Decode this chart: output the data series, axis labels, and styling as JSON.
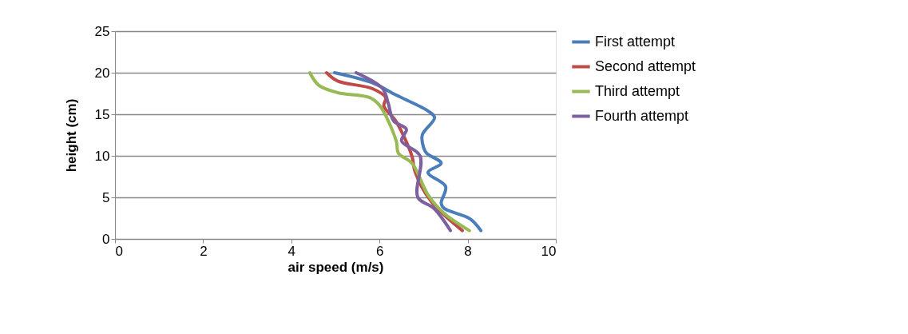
{
  "chart_data": {
    "type": "line",
    "xlabel": "air speed (m/s)",
    "ylabel": "height (cm)",
    "xlim": [
      0,
      10
    ],
    "xticks": [
      0,
      2,
      4,
      6,
      8,
      10
    ],
    "ylim": [
      0,
      25
    ],
    "yticks": [
      0,
      5,
      10,
      15,
      20,
      25
    ],
    "grid": "y",
    "legend": "right",
    "marker": "none",
    "line_style": "solid",
    "series": [
      {
        "name": "First attempt",
        "color": "#4a7ebb",
        "x": [
          8.3,
          8.06,
          7.46,
          7.4,
          7.5,
          7.1,
          7.4,
          7.07,
          7.0,
          6.97,
          7.25,
          7.1,
          6.38,
          5.83,
          4.98
        ],
        "values": [
          1,
          2.4,
          3.7,
          4.3,
          6.3,
          8,
          9.1,
          10.3,
          11,
          12.5,
          14.6,
          15.4,
          17.3,
          18.8,
          20
        ]
      },
      {
        "name": "Second attempt",
        "color": "#be4b48",
        "x": [
          7.88,
          7.16,
          6.8,
          6.74,
          6.38,
          6.1,
          6.14,
          5.83,
          5.05,
          4.8
        ],
        "values": [
          1,
          4.6,
          8.2,
          9.9,
          14.1,
          16,
          17,
          18.1,
          19,
          20
        ]
      },
      {
        "name": "Third attempt",
        "color": "#98b954",
        "x": [
          8.04,
          7.46,
          7.1,
          6.74,
          6.43,
          6.38,
          6.01,
          5.78,
          5.05,
          4.62,
          4.42
        ],
        "values": [
          1,
          3.1,
          5.3,
          9.1,
          10.3,
          11.8,
          16,
          17,
          17.6,
          18.5,
          20
        ]
      },
      {
        "name": "Fourth attempt",
        "color": "#7d60a0",
        "x": [
          7.61,
          7.23,
          6.87,
          6.92,
          6.5,
          6.61,
          6.32,
          6.2,
          6.07,
          5.47
        ],
        "values": [
          1,
          3.7,
          5,
          10,
          11.8,
          13.2,
          14.2,
          16.3,
          18.1,
          20
        ]
      }
    ]
  }
}
